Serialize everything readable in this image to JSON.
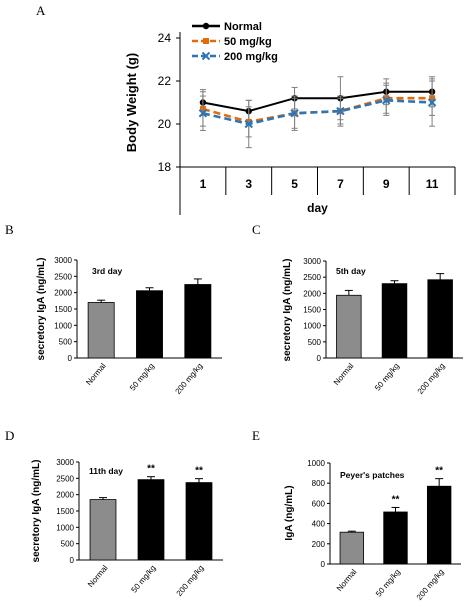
{
  "chart_data": [
    {
      "panel": "A",
      "type": "line",
      "xlabel": "day",
      "ylabel": "Body Weight (g)",
      "categories": [
        "1",
        "3",
        "5",
        "7",
        "9",
        "11"
      ],
      "ylim": [
        18,
        24
      ],
      "yticks": [
        18,
        20,
        22,
        24
      ],
      "legend": "top-left",
      "series": [
        {
          "name": "Normal",
          "values": [
            21.0,
            20.6,
            21.2,
            21.2,
            21.5,
            21.5
          ],
          "errors": [
            0.6,
            0.5,
            0.5,
            1.0,
            0.6,
            0.7
          ],
          "color": "#000000",
          "dash": "solid",
          "marker": "circle"
        },
        {
          "name": "50 mg/kg",
          "values": [
            20.7,
            20.1,
            20.5,
            20.6,
            21.2,
            21.2
          ],
          "errors": [
            0.8,
            0.7,
            0.7,
            0.6,
            0.7,
            0.8
          ],
          "color": "#e36c0a",
          "dash": "dash",
          "marker": "square"
        },
        {
          "name": "200 mg/kg",
          "values": [
            20.5,
            20.0,
            20.5,
            20.6,
            21.1,
            21.0
          ],
          "errors": [
            0.8,
            1.1,
            0.8,
            0.7,
            0.7,
            1.1
          ],
          "color": "#2e75b6",
          "dash": "dash",
          "marker": "x"
        }
      ]
    },
    {
      "panel": "B",
      "type": "bar",
      "title": "3rd day",
      "ylabel": "secretory IgA (ng/mL)",
      "categories": [
        "Normal",
        "50 mg/kg",
        "200 mg/kg"
      ],
      "values": [
        1700,
        2060,
        2250
      ],
      "errors": [
        70,
        90,
        170
      ],
      "colors": [
        "#8c8c8c",
        "#000000",
        "#000000"
      ],
      "sig": [
        "",
        "",
        ""
      ],
      "ylim": [
        0,
        3000
      ],
      "yticks": [
        0,
        500,
        1000,
        1500,
        2000,
        2500,
        3000
      ]
    },
    {
      "panel": "C",
      "type": "bar",
      "title": "5th day",
      "ylabel": "secretory IgA (ng/mL)",
      "categories": [
        "Normal",
        "50 mg/kg",
        "200 mg/kg"
      ],
      "values": [
        1940,
        2300,
        2420
      ],
      "errors": [
        150,
        90,
        190
      ],
      "colors": [
        "#8c8c8c",
        "#000000",
        "#000000"
      ],
      "sig": [
        "",
        "",
        ""
      ],
      "ylim": [
        0,
        3000
      ],
      "yticks": [
        0,
        500,
        1000,
        1500,
        2000,
        2500,
        3000
      ]
    },
    {
      "panel": "D",
      "type": "bar",
      "title": "11th day",
      "ylabel": "secretory IgA (ng/mL)",
      "categories": [
        "Normal",
        "50 mg/kg",
        "200 mg/kg"
      ],
      "values": [
        1850,
        2460,
        2370
      ],
      "errors": [
        60,
        90,
        120
      ],
      "colors": [
        "#8c8c8c",
        "#000000",
        "#000000"
      ],
      "sig": [
        "",
        "**",
        "**"
      ],
      "ylim": [
        0,
        3000
      ],
      "yticks": [
        0,
        500,
        1000,
        1500,
        2000,
        2500,
        3000
      ]
    },
    {
      "panel": "E",
      "type": "bar",
      "title": "Peyer's patches",
      "ylabel": "IgA (ng/mL)",
      "categories": [
        "Normal",
        "50 mg/kg",
        "200 mg/kg"
      ],
      "values": [
        315,
        515,
        770
      ],
      "errors": [
        10,
        45,
        75
      ],
      "colors": [
        "#8c8c8c",
        "#000000",
        "#000000"
      ],
      "sig": [
        "",
        "**",
        "**"
      ],
      "ylim": [
        0,
        1000
      ],
      "yticks": [
        0,
        200,
        400,
        600,
        800,
        1000
      ]
    }
  ]
}
